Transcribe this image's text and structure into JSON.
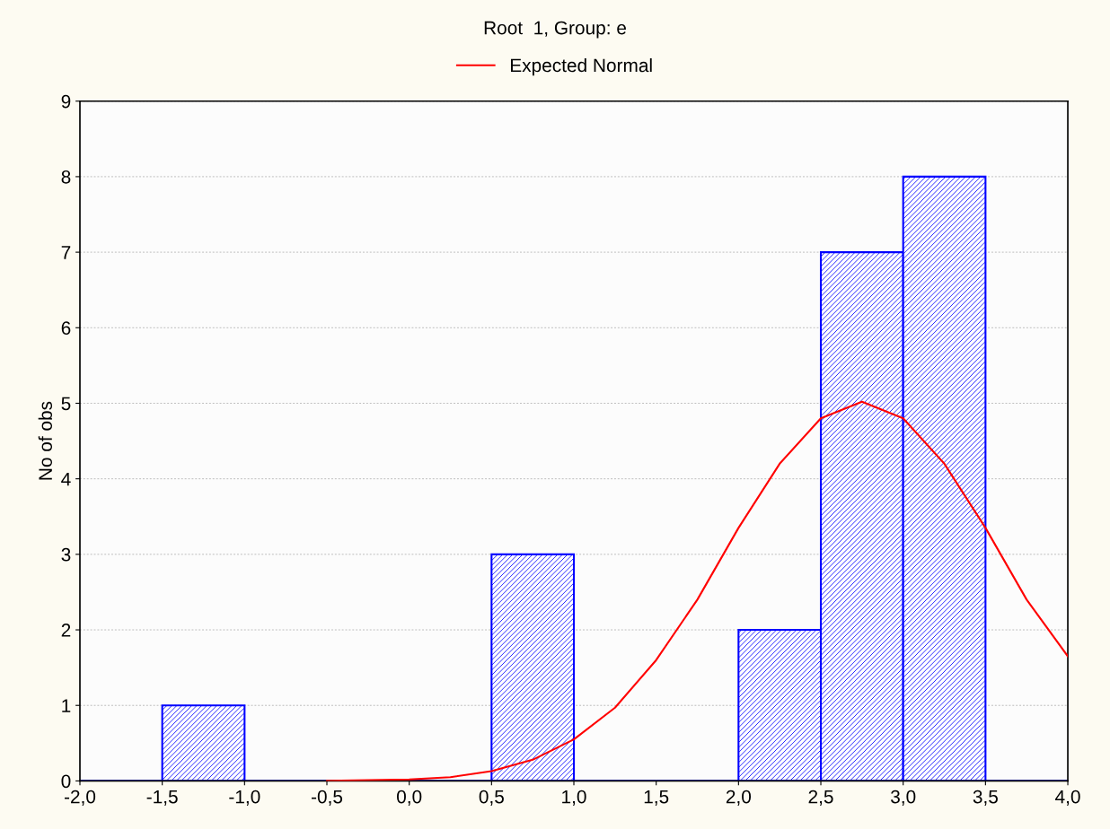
{
  "chart_data": {
    "type": "histogram",
    "title": "Root  1, Group: e",
    "ylabel": "No of obs",
    "bins": [
      -2.0,
      -1.5,
      -1.0,
      -0.5,
      0.0,
      0.5,
      1.0,
      1.5,
      2.0,
      2.5,
      3.0,
      3.5,
      4.0
    ],
    "values": [
      0,
      1,
      0,
      0,
      0,
      3,
      0,
      0,
      2,
      7,
      8,
      0
    ],
    "color": "#0000ff",
    "series": [
      {
        "type": "line",
        "name": "Expected Normal",
        "color": "#ff0000",
        "x": [
          -0.5,
          0.0,
          0.25,
          0.5,
          0.75,
          1.0,
          1.25,
          1.5,
          1.75,
          2.0,
          2.25,
          2.5,
          2.75,
          3.0,
          3.25,
          3.5,
          3.75,
          4.0
        ],
        "values": [
          0.0,
          0.02,
          0.05,
          0.13,
          0.28,
          0.55,
          0.97,
          1.6,
          2.4,
          3.35,
          4.2,
          4.8,
          5.02,
          4.8,
          4.2,
          3.35,
          2.4,
          1.65
        ]
      }
    ],
    "xlim": [
      -2.0,
      4.0
    ],
    "xticks": [
      {
        "value": -2.0,
        "label": "-2,0"
      },
      {
        "value": -1.5,
        "label": "-1,5"
      },
      {
        "value": -1.0,
        "label": "-1,0"
      },
      {
        "value": -0.5,
        "label": "-0,5"
      },
      {
        "value": 0.0,
        "label": "0,0"
      },
      {
        "value": 0.5,
        "label": "0,5"
      },
      {
        "value": 1.0,
        "label": "1,0"
      },
      {
        "value": 1.5,
        "label": "1,5"
      },
      {
        "value": 2.0,
        "label": "2,0"
      },
      {
        "value": 2.5,
        "label": "2,5"
      },
      {
        "value": 3.0,
        "label": "3,0"
      },
      {
        "value": 3.5,
        "label": "3,5"
      },
      {
        "value": 4.0,
        "label": "4,0"
      }
    ],
    "ylim": [
      0,
      9
    ],
    "yticks": [
      0,
      1,
      2,
      3,
      4,
      5,
      6,
      7,
      8,
      9
    ],
    "grid": "y",
    "legend": "top"
  }
}
